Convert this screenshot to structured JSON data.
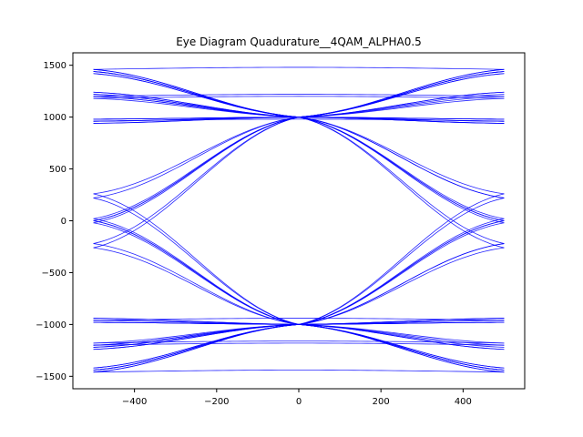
{
  "chart_data": {
    "type": "line",
    "title": "Eye Diagram Quadurature__4QAM_ALPHA0.5",
    "xlabel": "",
    "ylabel": "",
    "xlim": [
      -550,
      550
    ],
    "ylim": [
      -1620,
      1620
    ],
    "x_ticks": [
      -400,
      -200,
      0,
      200,
      400
    ],
    "x_tick_labels": [
      "−400",
      "−200",
      "0",
      "200",
      "400"
    ],
    "y_ticks": [
      -1500,
      -1000,
      -500,
      0,
      500,
      1000,
      1500
    ],
    "y_tick_labels": [
      "−1500",
      "−1000",
      "−500",
      "0",
      "500",
      "1000",
      "1500"
    ],
    "grid": false,
    "line_color": "#0000ff",
    "trace_x_range": [
      -500,
      500
    ],
    "crossing_points": [
      {
        "x": 0,
        "y": 1000
      },
      {
        "x": 0,
        "y": -1000
      }
    ],
    "edge_levels": [
      1460,
      1440,
      1420,
      1240,
      1220,
      1200,
      1180,
      980,
      960,
      940,
      260,
      220,
      20,
      0,
      -20,
      -220,
      -260,
      -940,
      -960,
      -980,
      -1180,
      -1200,
      -1220,
      -1240,
      -1420,
      -1440,
      -1460
    ],
    "series": [
      {
        "y_start": 1460,
        "y_end": 1460
      },
      {
        "y_start": 1440,
        "y_end": 1420
      },
      {
        "y_start": 1420,
        "y_end": 1440
      },
      {
        "y_start": 1460,
        "y_end": 1200
      },
      {
        "y_start": 1440,
        "y_end": 960
      },
      {
        "y_start": 1420,
        "y_end": 220
      },
      {
        "y_start": 1460,
        "y_end": 0
      },
      {
        "y_start": 1440,
        "y_end": -20
      },
      {
        "y_start": 1240,
        "y_end": 1460
      },
      {
        "y_start": 1220,
        "y_end": 1240
      },
      {
        "y_start": 1200,
        "y_end": 1200
      },
      {
        "y_start": 1180,
        "y_end": 1180
      },
      {
        "y_start": 1220,
        "y_end": 980
      },
      {
        "y_start": 1200,
        "y_end": 940
      },
      {
        "y_start": 1240,
        "y_end": 260
      },
      {
        "y_start": 1180,
        "y_end": 20
      },
      {
        "y_start": 1200,
        "y_end": -220
      },
      {
        "y_start": 980,
        "y_end": 1440
      },
      {
        "y_start": 960,
        "y_end": 1220
      },
      {
        "y_start": 940,
        "y_end": 980
      },
      {
        "y_start": 960,
        "y_end": 960
      },
      {
        "y_start": 980,
        "y_end": 940
      },
      {
        "y_start": 940,
        "y_end": 220
      },
      {
        "y_start": 960,
        "y_end": 0
      },
      {
        "y_start": 980,
        "y_end": -260
      },
      {
        "y_start": 260,
        "y_end": 1460
      },
      {
        "y_start": 220,
        "y_end": 1240
      },
      {
        "y_start": 20,
        "y_end": 960
      },
      {
        "y_start": 0,
        "y_end": 1180
      },
      {
        "y_start": -20,
        "y_end": 940
      },
      {
        "y_start": -220,
        "y_end": 1420
      },
      {
        "y_start": -260,
        "y_end": 980
      },
      {
        "y_start": 0,
        "y_end": 1440
      },
      {
        "y_start": -260,
        "y_end": -1460
      },
      {
        "y_start": -220,
        "y_end": -1240
      },
      {
        "y_start": -20,
        "y_end": -960
      },
      {
        "y_start": 0,
        "y_end": -1180
      },
      {
        "y_start": 20,
        "y_end": -940
      },
      {
        "y_start": 220,
        "y_end": -1420
      },
      {
        "y_start": 260,
        "y_end": -980
      },
      {
        "y_start": 0,
        "y_end": -1440
      },
      {
        "y_start": -980,
        "y_end": -1440
      },
      {
        "y_start": -960,
        "y_end": -1220
      },
      {
        "y_start": -940,
        "y_end": -980
      },
      {
        "y_start": -960,
        "y_end": -960
      },
      {
        "y_start": -980,
        "y_end": -940
      },
      {
        "y_start": -940,
        "y_end": -220
      },
      {
        "y_start": -960,
        "y_end": 0
      },
      {
        "y_start": -980,
        "y_end": 260
      },
      {
        "y_start": -1240,
        "y_end": -1460
      },
      {
        "y_start": -1220,
        "y_end": -1240
      },
      {
        "y_start": -1200,
        "y_end": -1200
      },
      {
        "y_start": -1180,
        "y_end": -1180
      },
      {
        "y_start": -1220,
        "y_end": -980
      },
      {
        "y_start": -1200,
        "y_end": -940
      },
      {
        "y_start": -1240,
        "y_end": -260
      },
      {
        "y_start": -1180,
        "y_end": -20
      },
      {
        "y_start": -1200,
        "y_end": 220
      },
      {
        "y_start": -1460,
        "y_end": -1460
      },
      {
        "y_start": -1440,
        "y_end": -1420
      },
      {
        "y_start": -1420,
        "y_end": -1440
      },
      {
        "y_start": -1460,
        "y_end": -1200
      },
      {
        "y_start": -1440,
        "y_end": -960
      },
      {
        "y_start": -1420,
        "y_end": -220
      },
      {
        "y_start": -1460,
        "y_end": 0
      },
      {
        "y_start": -1440,
        "y_end": 20
      }
    ]
  }
}
